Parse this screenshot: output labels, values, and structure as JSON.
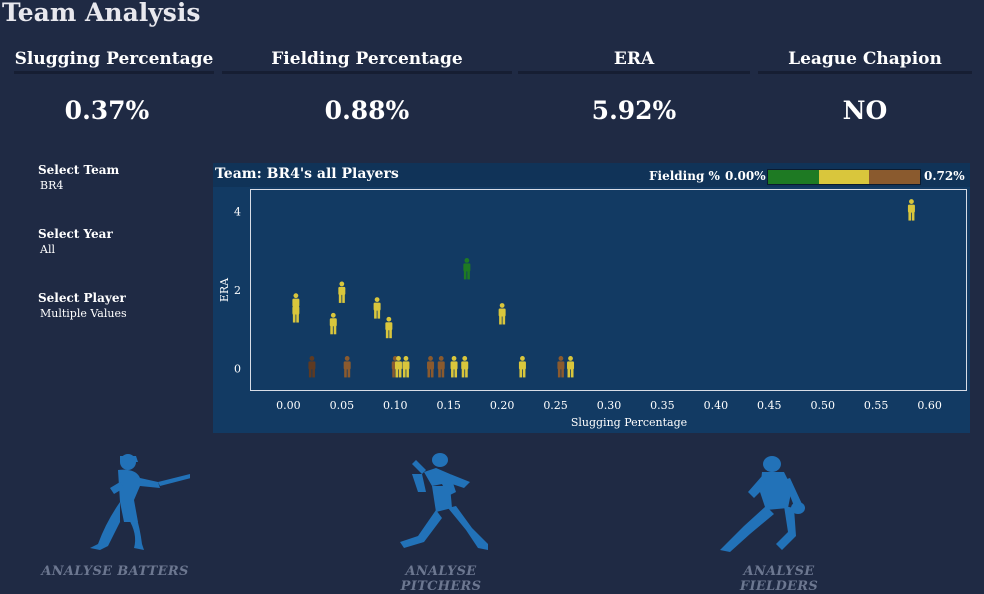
{
  "page": {
    "title": "Team Analysis"
  },
  "kpis": [
    {
      "label": "Slugging Percentage",
      "value": "0.37%"
    },
    {
      "label": "Fielding Percentage",
      "value": "0.88%"
    },
    {
      "label": "ERA",
      "value": "5.92%"
    },
    {
      "label": "League Chapion",
      "value": "NO"
    }
  ],
  "filters": {
    "team": {
      "label": "Select Team",
      "value": "BR4"
    },
    "year": {
      "label": "Select Year",
      "value": "All"
    },
    "player": {
      "label": "Select Player",
      "value": "Multiple Values"
    }
  },
  "panel": {
    "title": "Team: BR4's all Players",
    "legend": {
      "label": "Fielding %",
      "min": "0.00%",
      "max": "0.72%",
      "colors": [
        "#1e7a23",
        "#d9c63c",
        "#8a5a2e"
      ]
    }
  },
  "chart_data": {
    "type": "scatter",
    "xlabel": "Slugging Percentage",
    "ylabel": "ERA",
    "xlim": [
      -0.035,
      0.635
    ],
    "ylim": [
      -0.55,
      4.55
    ],
    "x_ticks": [
      "0.00",
      "0.05",
      "0.10",
      "0.15",
      "0.20",
      "0.25",
      "0.30",
      "0.35",
      "0.40",
      "0.45",
      "0.50",
      "0.55",
      "0.60"
    ],
    "y_ticks": [
      "0",
      "2",
      "4"
    ],
    "marker": "person-icon",
    "points": [
      {
        "x": 0.583,
        "y": 4.0,
        "color": "#d9c63c"
      },
      {
        "x": 0.167,
        "y": 2.5,
        "color": "#1e7a23"
      },
      {
        "x": 0.05,
        "y": 1.9,
        "color": "#d9c63c"
      },
      {
        "x": 0.007,
        "y": 1.6,
        "color": "#d9c63c"
      },
      {
        "x": 0.007,
        "y": 1.4,
        "color": "#d9c63c"
      },
      {
        "x": 0.083,
        "y": 1.5,
        "color": "#d9c63c"
      },
      {
        "x": 0.2,
        "y": 1.35,
        "color": "#d9c63c"
      },
      {
        "x": 0.042,
        "y": 1.1,
        "color": "#d9c63c"
      },
      {
        "x": 0.094,
        "y": 1.0,
        "color": "#d9c63c"
      },
      {
        "x": 0.022,
        "y": 0,
        "color": "#5e3a22"
      },
      {
        "x": 0.055,
        "y": 0,
        "color": "#8a5a2e"
      },
      {
        "x": 0.1,
        "y": 0,
        "color": "#8a5a2e"
      },
      {
        "x": 0.103,
        "y": 0,
        "color": "#d9c63c"
      },
      {
        "x": 0.11,
        "y": 0,
        "color": "#d9c63c"
      },
      {
        "x": 0.133,
        "y": 0,
        "color": "#8a5a2e"
      },
      {
        "x": 0.143,
        "y": 0,
        "color": "#8a5a2e"
      },
      {
        "x": 0.155,
        "y": 0,
        "color": "#d9c63c"
      },
      {
        "x": 0.165,
        "y": 0,
        "color": "#d9c63c"
      },
      {
        "x": 0.219,
        "y": 0,
        "color": "#d9c63c"
      },
      {
        "x": 0.255,
        "y": 0,
        "color": "#8a5a2e"
      },
      {
        "x": 0.264,
        "y": 0,
        "color": "#d9c63c"
      }
    ]
  },
  "nav": {
    "batters": {
      "label": "ANALYSE BATTERS",
      "icon": "batter-icon"
    },
    "pitchers": {
      "label": "ANALYSE PITCHERS",
      "icon": "pitcher-icon"
    },
    "fielders": {
      "label": "ANALYSE FIELDERS",
      "icon": "fielder-icon"
    },
    "icon_color": "#2272b8"
  }
}
